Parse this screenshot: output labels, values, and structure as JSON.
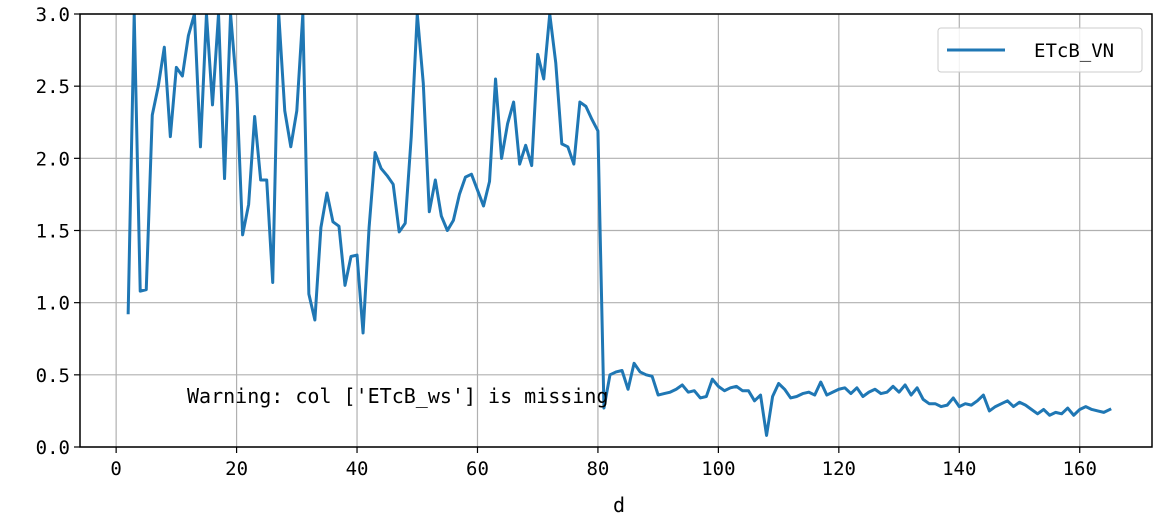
{
  "chart_data": {
    "type": "line",
    "title": "",
    "xlabel": "d",
    "ylabel": "",
    "xlim": [
      -6,
      172
    ],
    "ylim": [
      0,
      3.0
    ],
    "xticks": [
      0,
      20,
      40,
      60,
      80,
      100,
      120,
      140,
      160
    ],
    "yticks": [
      0,
      0.5,
      1.0,
      1.5,
      2.0,
      2.5,
      3.0
    ],
    "ytick_labels": [
      "0.0",
      "0.5",
      "1.0",
      "1.5",
      "2.0",
      "2.5",
      "3.0"
    ],
    "grid": true,
    "legend_position": "top-right",
    "annotation": "Warning: col ['ETcB_ws'] is missing",
    "series": [
      {
        "name": "ETcB_VN",
        "color": "#1f77b4",
        "x": [
          2,
          3,
          4,
          5,
          6,
          7,
          8,
          9,
          10,
          11,
          12,
          13,
          14,
          15,
          16,
          17,
          18,
          19,
          20,
          21,
          22,
          23,
          24,
          25,
          26,
          27,
          28,
          29,
          30,
          31,
          32,
          33,
          34,
          35,
          36,
          37,
          38,
          39,
          40,
          41,
          42,
          43,
          44,
          45,
          46,
          47,
          48,
          49,
          50,
          51,
          52,
          53,
          54,
          55,
          56,
          57,
          58,
          59,
          60,
          61,
          62,
          63,
          64,
          65,
          66,
          67,
          68,
          69,
          70,
          71,
          72,
          73,
          74,
          75,
          76,
          77,
          78,
          79,
          80,
          81,
          82,
          83,
          84,
          85,
          86,
          87,
          88,
          89,
          90,
          91,
          92,
          93,
          94,
          95,
          96,
          97,
          98,
          99,
          100,
          101,
          102,
          103,
          104,
          105,
          106,
          107,
          108,
          109,
          110,
          111,
          112,
          113,
          114,
          115,
          116,
          117,
          118,
          119,
          120,
          121,
          122,
          123,
          124,
          125,
          126,
          127,
          128,
          129,
          130,
          131,
          132,
          133,
          134,
          135,
          136,
          137,
          138,
          139,
          140,
          141,
          142,
          143,
          144,
          145,
          146,
          147,
          148,
          149,
          150,
          151,
          152,
          153,
          154,
          155,
          156,
          157,
          158,
          159,
          160,
          161,
          162,
          163,
          164,
          165
        ],
        "y": [
          0.93,
          3.0,
          1.08,
          1.09,
          2.3,
          2.5,
          2.77,
          2.15,
          2.63,
          2.57,
          2.85,
          3.0,
          2.08,
          3.0,
          2.37,
          3.0,
          1.86,
          3.0,
          2.5,
          1.47,
          1.68,
          2.29,
          1.85,
          1.85,
          1.14,
          3.0,
          2.33,
          2.08,
          2.33,
          3.0,
          1.06,
          0.88,
          1.52,
          1.76,
          1.56,
          1.53,
          1.12,
          1.32,
          1.33,
          0.79,
          1.52,
          2.04,
          1.93,
          1.88,
          1.82,
          1.49,
          1.55,
          2.15,
          3.0,
          2.52,
          1.63,
          1.85,
          1.6,
          1.5,
          1.57,
          1.75,
          1.87,
          1.89,
          1.78,
          1.67,
          1.84,
          2.55,
          2.0,
          2.24,
          2.39,
          1.96,
          2.09,
          1.95,
          2.72,
          2.55,
          3.0,
          2.66,
          2.1,
          2.08,
          1.96,
          2.39,
          2.36,
          2.27,
          2.19,
          0.27,
          0.5,
          0.52,
          0.53,
          0.4,
          0.58,
          0.52,
          0.5,
          0.49,
          0.36,
          0.37,
          0.38,
          0.4,
          0.43,
          0.38,
          0.39,
          0.34,
          0.35,
          0.47,
          0.42,
          0.39,
          0.41,
          0.42,
          0.39,
          0.39,
          0.32,
          0.36,
          0.08,
          0.35,
          0.44,
          0.4,
          0.34,
          0.35,
          0.37,
          0.38,
          0.36,
          0.45,
          0.36,
          0.38,
          0.4,
          0.41,
          0.37,
          0.41,
          0.35,
          0.38,
          0.4,
          0.37,
          0.38,
          0.42,
          0.38,
          0.43,
          0.36,
          0.41,
          0.33,
          0.3,
          0.3,
          0.28,
          0.29,
          0.34,
          0.28,
          0.3,
          0.29,
          0.32,
          0.36,
          0.25,
          0.28,
          0.3,
          0.32,
          0.28,
          0.31,
          0.29,
          0.26,
          0.23,
          0.26,
          0.22,
          0.24,
          0.23,
          0.27,
          0.22,
          0.26,
          0.28,
          0.26,
          0.25,
          0.24,
          0.26
        ]
      }
    ]
  }
}
